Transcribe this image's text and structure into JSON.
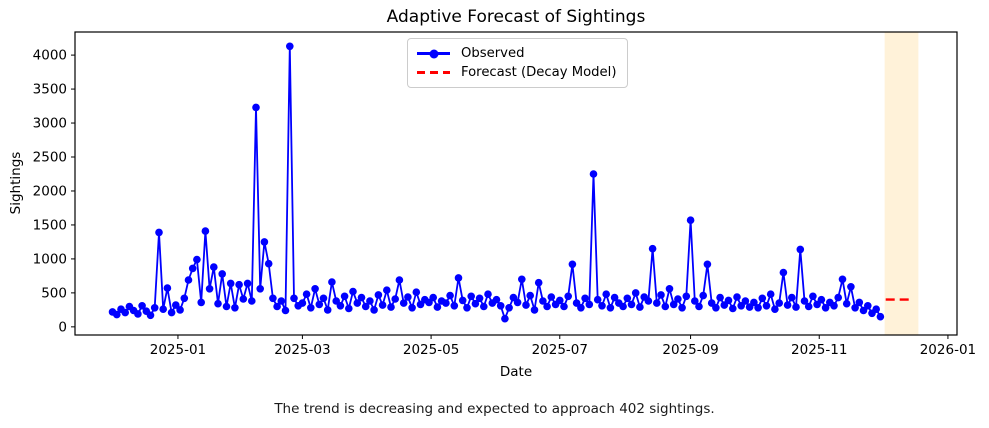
{
  "title": "Adaptive Forecast of Sightings",
  "axis": {
    "xlabel": "Date",
    "ylabel": "Sightings"
  },
  "caption": "The trend is decreasing and expected to approach 402 sightings.",
  "legend": {
    "observed": "Observed",
    "forecast": "Forecast (Decay Model)"
  },
  "chart_data": {
    "type": "line",
    "title": "Adaptive Forecast of Sightings",
    "xlabel": "Date",
    "ylabel": "Sightings",
    "x_unit": "days since 2024-12-01",
    "xlim": [
      -17.8,
      400.3
    ],
    "ylim": [
      -120,
      4340
    ],
    "grid": false,
    "legend_position": "upper center",
    "x_ticks": [
      {
        "day": 31,
        "label": "2025-01"
      },
      {
        "day": 90,
        "label": "2025-03"
      },
      {
        "day": 151,
        "label": "2025-05"
      },
      {
        "day": 212,
        "label": "2025-07"
      },
      {
        "day": 274,
        "label": "2025-09"
      },
      {
        "day": 335,
        "label": "2025-11"
      },
      {
        "day": 396,
        "label": "2026-01"
      }
    ],
    "y_ticks": [
      0,
      500,
      1000,
      1500,
      2000,
      2500,
      3000,
      3500,
      4000
    ],
    "colors": {
      "observed": "#0000ff",
      "forecast": "#ff0000",
      "forecast_band": "#fff2d9",
      "spine": "#000000"
    },
    "series": [
      {
        "name": "Observed",
        "style": "solid-line-with-circle-markers",
        "color": "#0000ff",
        "start_day": 0,
        "step_days": 2,
        "values": [
          220,
          180,
          260,
          210,
          300,
          240,
          190,
          310,
          230,
          170,
          280,
          1390,
          260,
          570,
          210,
          320,
          250,
          420,
          690,
          860,
          990,
          360,
          1410,
          560,
          880,
          340,
          780,
          300,
          640,
          280,
          620,
          410,
          640,
          380,
          3230,
          560,
          1250,
          930,
          420,
          300,
          380,
          240,
          4130,
          420,
          310,
          350,
          480,
          280,
          560,
          330,
          420,
          250,
          660,
          380,
          310,
          450,
          270,
          520,
          350,
          430,
          300,
          380,
          250,
          470,
          320,
          540,
          290,
          410,
          690,
          350,
          440,
          280,
          510,
          330,
          400,
          360,
          430,
          290,
          380,
          350,
          460,
          310,
          720,
          390,
          280,
          450,
          340,
          420,
          300,
          480,
          350,
          400,
          310,
          120,
          280,
          430,
          360,
          700,
          320,
          460,
          250,
          650,
          380,
          300,
          440,
          330,
          390,
          300,
          450,
          920,
          350,
          280,
          420,
          330,
          2250,
          400,
          310,
          480,
          280,
          430,
          350,
          300,
          420,
          330,
          500,
          290,
          440,
          380,
          1150,
          350,
          470,
          300,
          560,
          330,
          410,
          280,
          450,
          1570,
          380,
          300,
          460,
          920,
          350,
          280,
          430,
          320,
          390,
          270,
          440,
          310,
          380,
          290,
          360,
          280,
          420,
          310,
          480,
          260,
          350,
          800,
          320,
          430,
          290,
          1140,
          380,
          300,
          450,
          330,
          400,
          280,
          360,
          310,
          430,
          700,
          340,
          590,
          280,
          360,
          240,
          310,
          200,
          260,
          150
        ]
      },
      {
        "name": "Forecast (Decay Model)",
        "style": "dashed-horizontal-line",
        "color": "#ff0000",
        "start_day": 366.5,
        "end_day": 379.5,
        "value": 402
      }
    ],
    "forecast_band": {
      "start_day": 366,
      "end_day": 382,
      "color": "#fff2d9"
    }
  }
}
